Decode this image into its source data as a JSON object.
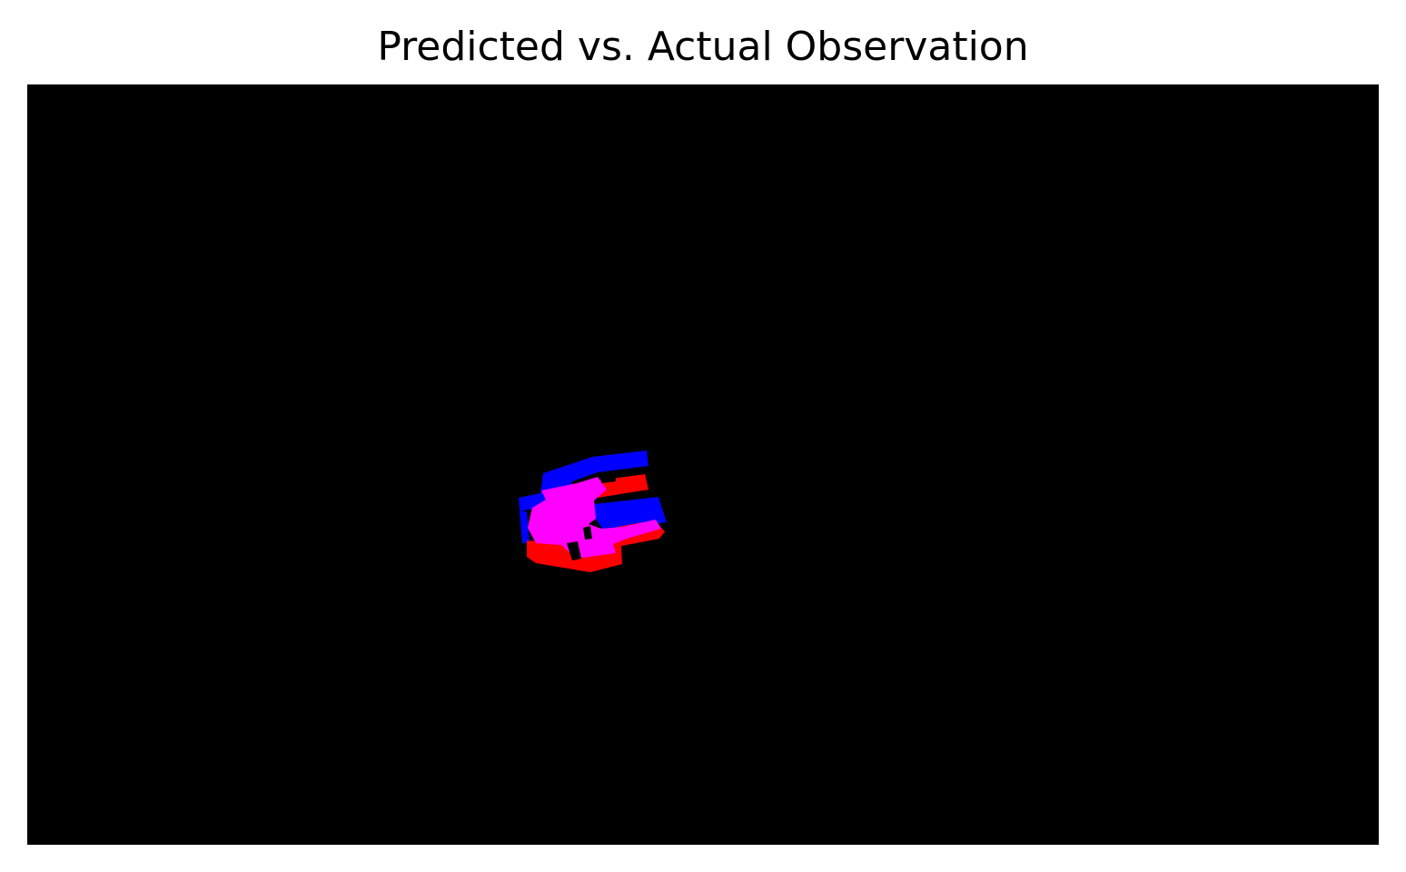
{
  "figure": {
    "title": "Predicted vs. Actual Observation"
  },
  "overlay": {
    "background_color": "#000000",
    "predicted_color": "#0000ff",
    "actual_color": "#ff0000",
    "overlap_color": "#ff00ff"
  }
}
